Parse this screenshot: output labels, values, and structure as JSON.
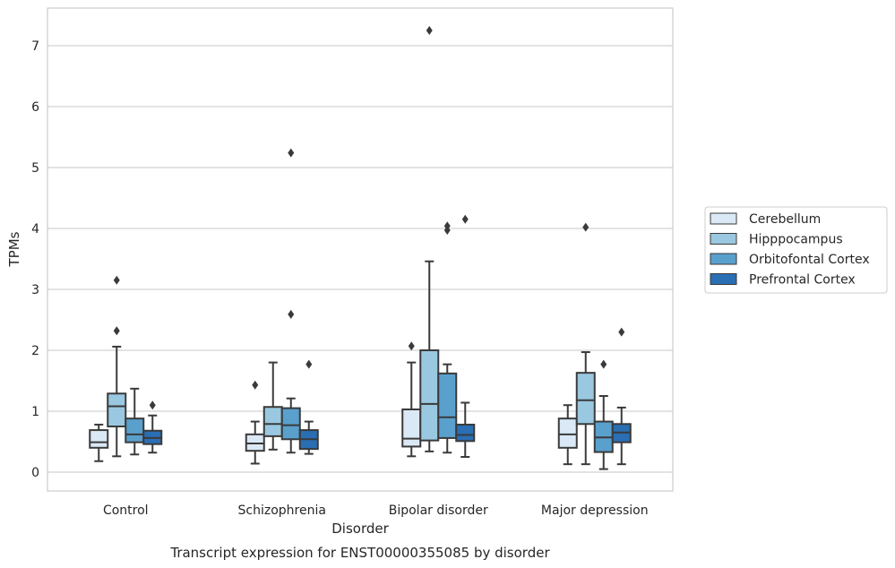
{
  "chart_data": {
    "type": "box",
    "title": "",
    "caption": "Transcript expression for ENST00000355085 by disorder",
    "xlabel": "Disorder",
    "ylabel": "TPMs",
    "ylim": [
      -0.3,
      7.6
    ],
    "yticks": [
      0,
      1,
      2,
      3,
      4,
      5,
      6,
      7
    ],
    "grid": "horizontal",
    "legend_position": "right",
    "categories": [
      "Control",
      "Schizophrenia",
      "Bipolar disorder",
      "Major depression"
    ],
    "series": [
      {
        "name": "Cerebellum",
        "color": "#dbe9f6",
        "boxes": [
          {
            "min": 0.18,
            "q1": 0.4,
            "median": 0.49,
            "q3": 0.69,
            "max": 0.78,
            "outliers": []
          },
          {
            "min": 0.14,
            "q1": 0.35,
            "median": 0.47,
            "q3": 0.62,
            "max": 0.83,
            "outliers": [
              1.43
            ]
          },
          {
            "min": 0.26,
            "q1": 0.42,
            "median": 0.55,
            "q3": 1.03,
            "max": 1.8,
            "outliers": [
              2.07
            ]
          },
          {
            "min": 0.13,
            "q1": 0.4,
            "median": 0.62,
            "q3": 0.88,
            "max": 1.1,
            "outliers": []
          }
        ]
      },
      {
        "name": "Hipppocampus",
        "color": "#9ac8e0",
        "boxes": [
          {
            "min": 0.26,
            "q1": 0.75,
            "median": 1.08,
            "q3": 1.29,
            "max": 2.06,
            "outliers": [
              2.32,
              3.15
            ]
          },
          {
            "min": 0.37,
            "q1": 0.59,
            "median": 0.79,
            "q3": 1.07,
            "max": 1.8,
            "outliers": []
          },
          {
            "min": 0.34,
            "q1": 0.52,
            "median": 1.12,
            "q3": 2.0,
            "max": 3.46,
            "outliers": [
              7.25
            ]
          },
          {
            "min": 0.13,
            "q1": 0.79,
            "median": 1.18,
            "q3": 1.63,
            "max": 1.97,
            "outliers": [
              4.02
            ]
          }
        ]
      },
      {
        "name": "Orbitofontal Cortex",
        "color": "#5aa0cd",
        "boxes": [
          {
            "min": 0.29,
            "q1": 0.49,
            "median": 0.62,
            "q3": 0.88,
            "max": 1.37,
            "outliers": []
          },
          {
            "min": 0.32,
            "q1": 0.54,
            "median": 0.77,
            "q3": 1.05,
            "max": 1.21,
            "outliers": [
              2.59,
              5.24
            ]
          },
          {
            "min": 0.32,
            "q1": 0.56,
            "median": 0.9,
            "q3": 1.62,
            "max": 1.77,
            "outliers": [
              3.97,
              4.04
            ]
          },
          {
            "min": 0.05,
            "q1": 0.33,
            "median": 0.57,
            "q3": 0.83,
            "max": 1.25,
            "outliers": [
              1.77
            ]
          }
        ]
      },
      {
        "name": "Prefrontal Cortex",
        "color": "#2a6eb4",
        "boxes": [
          {
            "min": 0.32,
            "q1": 0.46,
            "median": 0.56,
            "q3": 0.68,
            "max": 0.93,
            "outliers": [
              1.1
            ]
          },
          {
            "min": 0.3,
            "q1": 0.38,
            "median": 0.54,
            "q3": 0.69,
            "max": 0.83,
            "outliers": [
              1.77
            ]
          },
          {
            "min": 0.25,
            "q1": 0.51,
            "median": 0.61,
            "q3": 0.78,
            "max": 1.14,
            "outliers": [
              4.15
            ]
          },
          {
            "min": 0.13,
            "q1": 0.49,
            "median": 0.65,
            "q3": 0.79,
            "max": 1.06,
            "outliers": [
              2.3
            ]
          }
        ]
      }
    ]
  }
}
